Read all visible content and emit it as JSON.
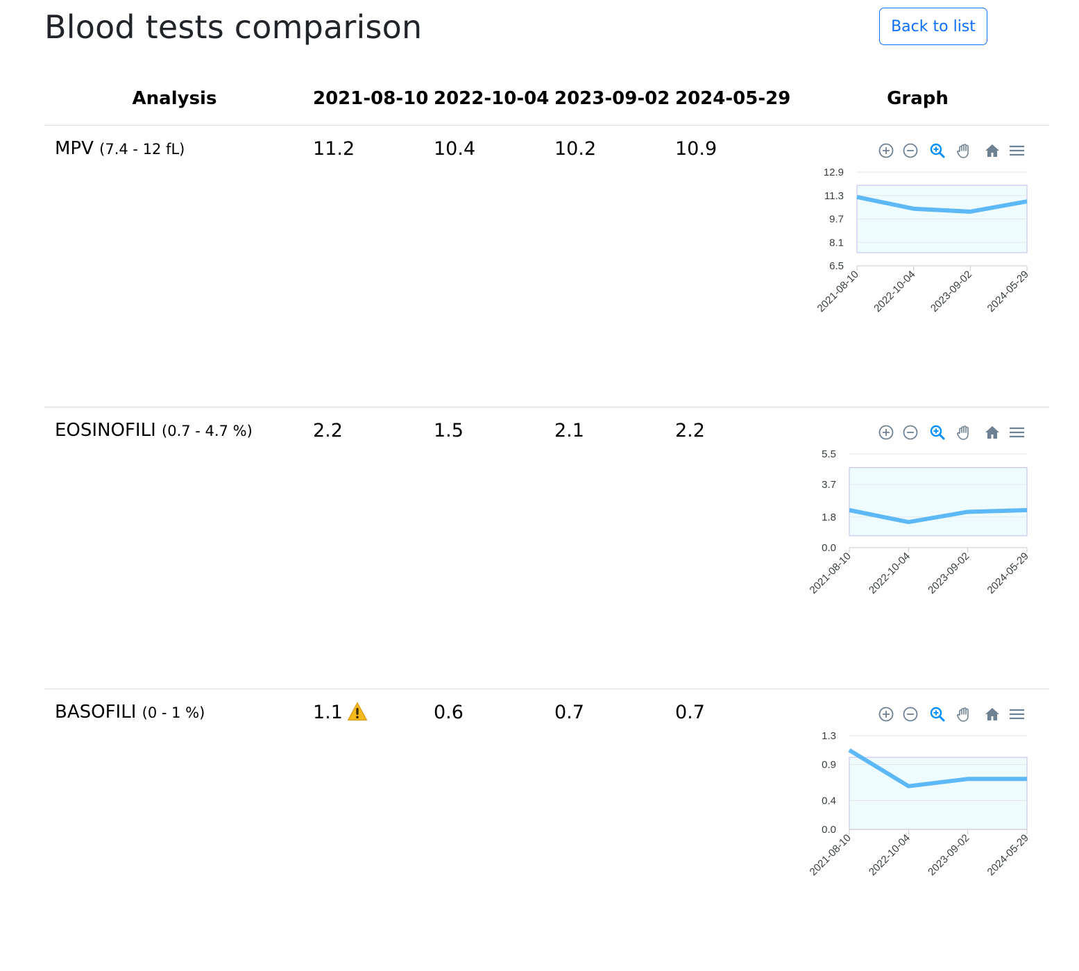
{
  "page": {
    "title": "Blood tests comparison",
    "back_label": "Back to list"
  },
  "table": {
    "headers": {
      "analysis": "Analysis",
      "dates": [
        "2021-08-10",
        "2022-10-04",
        "2023-09-02",
        "2024-05-29"
      ],
      "graph": "Graph"
    },
    "rows": [
      {
        "name": "MPV",
        "range": "(7.4 - 12 fL)",
        "values": [
          "11.2",
          "10.4",
          "10.2",
          "10.9"
        ],
        "warning": [
          false,
          false,
          false,
          false
        ]
      },
      {
        "name": "EOSINOFILI",
        "range": "(0.7 - 4.7 %)",
        "values": [
          "2.2",
          "1.5",
          "2.1",
          "2.2"
        ],
        "warning": [
          false,
          false,
          false,
          false
        ]
      },
      {
        "name": "BASOFILI",
        "range": "(0 - 1 %)",
        "values": [
          "1.1",
          "0.6",
          "0.7",
          "0.7"
        ],
        "warning": [
          true,
          false,
          false,
          false
        ]
      }
    ]
  },
  "toolbar_icons": [
    "zoom-in-icon",
    "zoom-out-icon",
    "selection-zoom-icon",
    "pan-hand-icon",
    "reset-home-icon",
    "menu-icon"
  ],
  "colors": {
    "accent": "#0d6efd",
    "series": "#5cb8f7",
    "band_fill": "#eefcff",
    "band_stroke": "#c9c6ef",
    "warning": "#f5b91d",
    "icon": "#6e8192",
    "icon_active": "#008ffb"
  },
  "chart_data": [
    {
      "type": "line",
      "x": [
        "2021-08-10",
        "2022-10-04",
        "2023-09-02",
        "2024-05-29"
      ],
      "series": [
        {
          "values": [
            11.2,
            10.4,
            10.2,
            10.9
          ]
        }
      ],
      "yticks": [
        "12.9",
        "11.3",
        "9.7",
        "8.1",
        "6.5"
      ],
      "ylim": [
        6.5,
        12.9
      ],
      "band": [
        7.4,
        12
      ],
      "grid": true
    },
    {
      "type": "line",
      "x": [
        "2021-08-10",
        "2022-10-04",
        "2023-09-02",
        "2024-05-29"
      ],
      "series": [
        {
          "values": [
            2.2,
            1.5,
            2.1,
            2.2
          ]
        }
      ],
      "yticks": [
        "5.5",
        "3.7",
        "1.8",
        "0.0"
      ],
      "ylim": [
        0,
        5.5
      ],
      "band": [
        0.7,
        4.7
      ],
      "grid": true
    },
    {
      "type": "line",
      "x": [
        "2021-08-10",
        "2022-10-04",
        "2023-09-02",
        "2024-05-29"
      ],
      "series": [
        {
          "values": [
            1.1,
            0.6,
            0.7,
            0.7
          ]
        }
      ],
      "yticks": [
        "1.3",
        "0.9",
        "0.4",
        "0.0"
      ],
      "ylim": [
        0,
        1.3
      ],
      "band": [
        0,
        1
      ],
      "grid": true
    }
  ]
}
